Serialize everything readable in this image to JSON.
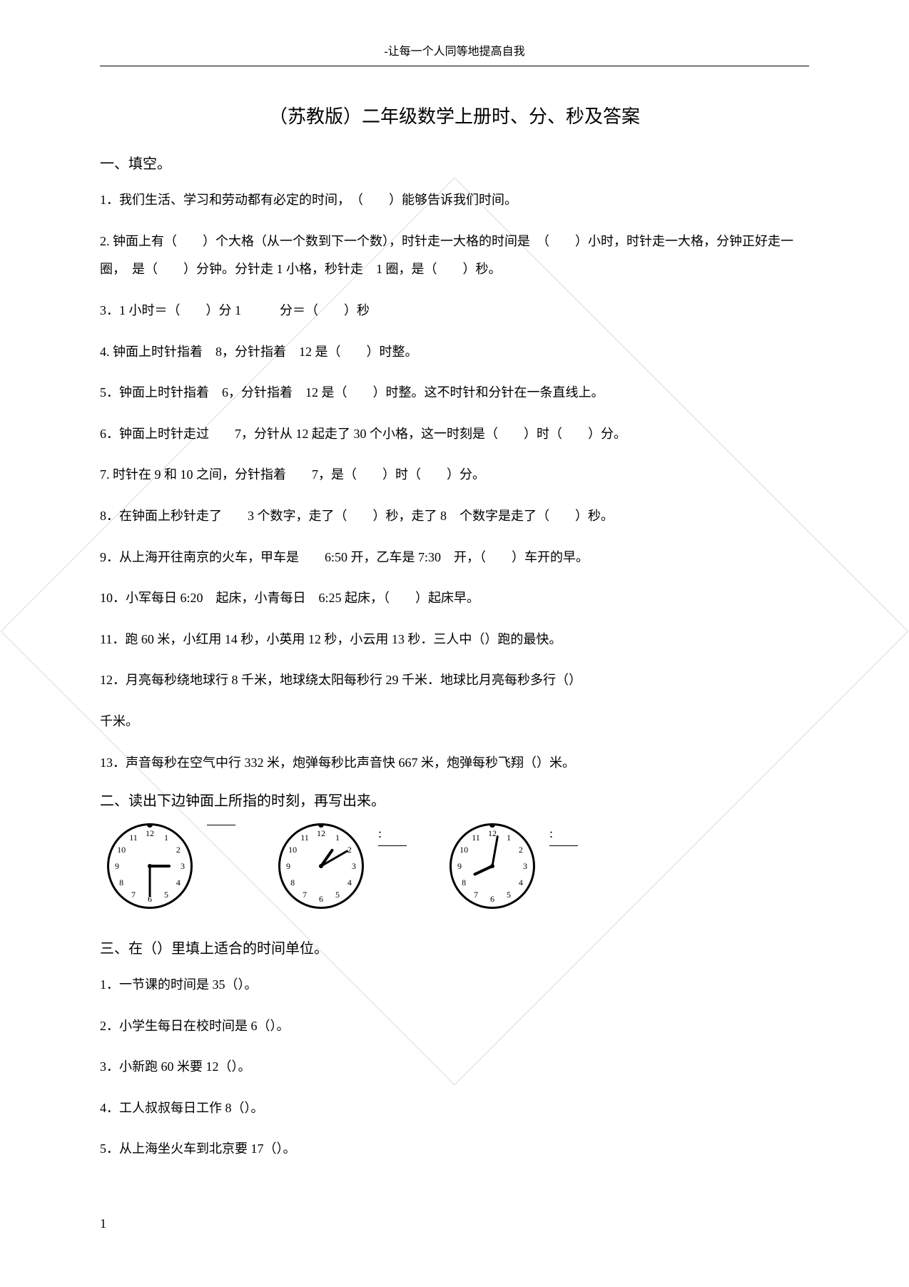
{
  "header": "-让每一个人同等地提高自我",
  "title": "（苏教版）二年级数学上册时、分、秒及答案",
  "section1": {
    "heading": "一、填空。",
    "questions": [
      "1．我们生活、学习和劳动都有必定的时间，　（　　）能够告诉我们时间。",
      "2. 钟面上有（　　）个大格（从一个数到下一个数），时针走一大格的时间是　（　　）小时，时针走一大格，分钟正好走一圈，　是（　　）分钟。分针走 1 小格，秒针走　1 圈，是（　　）秒。",
      "3．1 小时＝（　　）分 1　　　分＝（　　）秒",
      "4. 钟面上时针指着　8，分针指着　12 是（　　）时整。",
      "5．钟面上时针指着　6，分针指着　12 是（　　）时整。这不时针和分针在一条直线上。",
      "6．钟面上时针走过　　7，分针从 12 起走了 30 个小格，这一时刻是（　　）时（　　）分。",
      "7. 时针在 9 和 10 之间，分针指着　　7，是（　　）时（　　）分。",
      "8．在钟面上秒针走了　　3 个数字，走了（　　）秒，走了 8　个数字是走了（　　）秒。",
      "9．从上海开往南京的火车，甲车是　　6:50 开，乙车是 7:30　开，（　　）车开的早。",
      "10．小军每日 6:20　起床，小青每日　6:25 起床，（　　）起床早。",
      "11．跑 60 米，小红用 14 秒，小英用 12 秒，小云用 13 秒．三人中（）跑的最快。",
      "12．月亮每秒绕地球行 8 千米，地球绕太阳每秒行 29 千米．地球比月亮每秒多行（）",
      "千米。",
      "13．声音每秒在空气中行 332 米，炮弹每秒比声音快 667 米，炮弹每秒飞翔（）米。"
    ]
  },
  "section2": {
    "heading": "二、读出下边钟面上所指的时刻，再写出来。",
    "clocks": [
      {
        "hour_angle": 90,
        "minute_angle": 180,
        "label": ""
      },
      {
        "hour_angle": 35,
        "minute_angle": 60,
        "label": ":"
      },
      {
        "hour_angle": 245,
        "minute_angle": 10,
        "label": ":"
      }
    ],
    "clock_style": {
      "size": 120,
      "border_color": "#000000",
      "border_width": 3,
      "tick_color": "#000000",
      "hand_color": "#000000",
      "numbers": [
        "12",
        "1",
        "2",
        "3",
        "4",
        "5",
        "6",
        "7",
        "8",
        "9",
        "10",
        "11"
      ],
      "number_fontsize": 12
    }
  },
  "section3": {
    "heading": "三、在（）里填上适合的时间单位。",
    "questions": [
      "1．一节课的时间是 35（）。",
      "2．小学生每日在校时间是 6（）。",
      "3．小新跑 60 米要 12（）。",
      "4．工人叔叔每日工作 8（）。",
      "5．从上海坐火车到北京要 17（）。"
    ]
  },
  "page_number": "1"
}
